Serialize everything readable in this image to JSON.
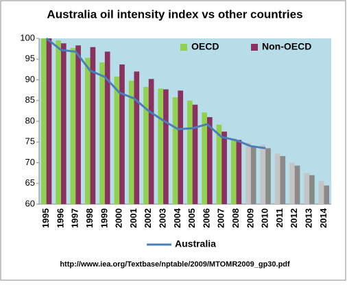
{
  "chart_data": {
    "type": "bar",
    "title": "Australia oil intensity index vs other countries",
    "categories": [
      "1995",
      "1996",
      "1997",
      "1998",
      "1999",
      "2000",
      "2001",
      "2002",
      "2003",
      "2004",
      "2005",
      "2006",
      "2007",
      "2008",
      "2009",
      "2010",
      "2011",
      "2012",
      "2013",
      "2014"
    ],
    "series": [
      {
        "name": "OECD",
        "type": "bar",
        "color": "#92d050",
        "colors": [
          "#92d050",
          "#92d050",
          "#92d050",
          "#92d050",
          "#92d050",
          "#92d050",
          "#92d050",
          "#92d050",
          "#92d050",
          "#92d050",
          "#92d050",
          "#92d050",
          "#92d050",
          "#92d050",
          "#c4c4c4",
          "#c4c4c4",
          "#c4c4c4",
          "#c4c4c4",
          "#c4c4c4",
          "#c4c4c4"
        ],
        "values": [
          100,
          99.5,
          97.7,
          95.3,
          94.2,
          90.8,
          89.8,
          88.3,
          87.9,
          85.8,
          85.0,
          82.1,
          79.2,
          75.8,
          74.8,
          74.3,
          72.2,
          70.0,
          67.5,
          65.6
        ]
      },
      {
        "name": "Non-OECD",
        "type": "bar",
        "color": "#8b3160",
        "colors": [
          "#8b3160",
          "#8b3160",
          "#8b3160",
          "#8b3160",
          "#8b3160",
          "#8b3160",
          "#8b3160",
          "#8b3160",
          "#8b3160",
          "#8b3160",
          "#8b3160",
          "#8b3160",
          "#8b3160",
          "#8b3160",
          "#8a8a8a",
          "#8a8a8a",
          "#8a8a8a",
          "#8a8a8a",
          "#8a8a8a",
          "#8a8a8a"
        ],
        "values": [
          100,
          98.8,
          98.3,
          97.9,
          96.8,
          93.7,
          92.0,
          90.2,
          87.7,
          87.4,
          84.0,
          81.0,
          77.5,
          75.5,
          74.0,
          73.5,
          71.6,
          69.3,
          67.0,
          64.5
        ]
      },
      {
        "name": "Australia",
        "type": "line",
        "color": "#4a7ebb",
        "values": [
          100,
          97.2,
          96.8,
          92.2,
          90.7,
          86.9,
          85.5,
          82.5,
          80.2,
          78.1,
          78.3,
          79.3,
          76.2,
          75.4,
          74.0,
          73.5,
          null,
          null,
          null,
          null
        ]
      }
    ],
    "ylim": [
      60,
      100
    ],
    "yticks": [
      60,
      65,
      70,
      75,
      80,
      85,
      90,
      95,
      100
    ],
    "source": "http://www.iea.org/Textbase/nptable/2009/MTOMR2009_gp30.pdf"
  }
}
